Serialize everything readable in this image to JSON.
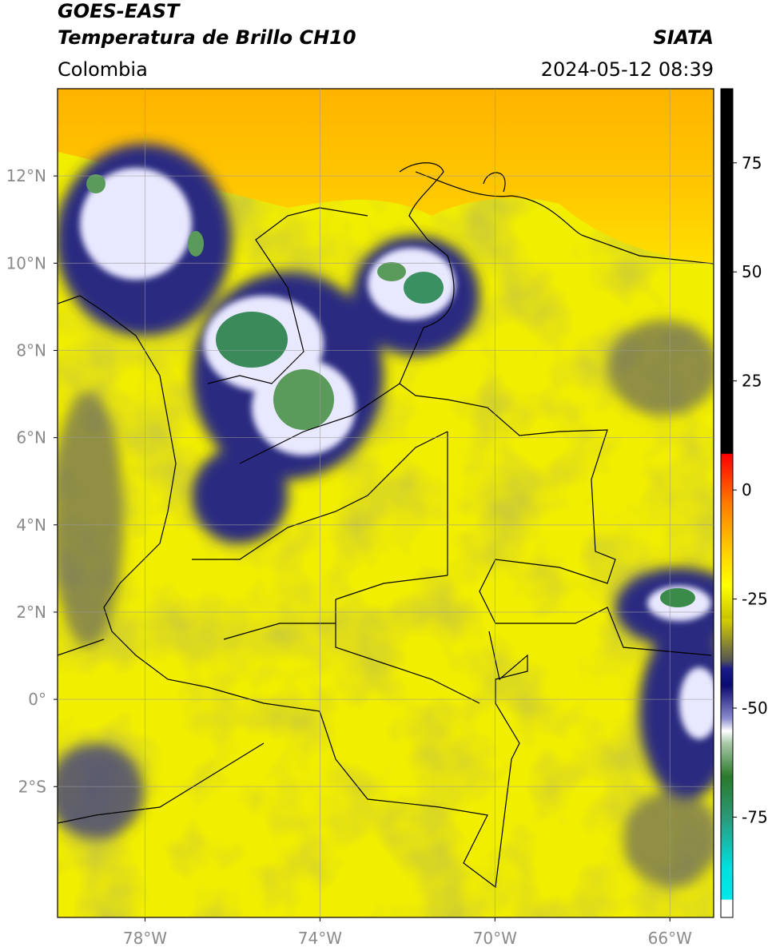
{
  "header": {
    "satellite": "GOES-EAST",
    "product": "Temperatura de Brillo CH10",
    "source": "SIATA",
    "region": "Colombia",
    "datetime": "2024-05-12 08:39"
  },
  "map": {
    "xlim": [
      -80,
      -65
    ],
    "ylim": [
      -5,
      14
    ],
    "grid": true,
    "xticks": [
      {
        "value": -78,
        "label": "78°W"
      },
      {
        "value": -74,
        "label": "74°W"
      },
      {
        "value": -70,
        "label": "70°W"
      },
      {
        "value": -66,
        "label": "66°W"
      }
    ],
    "yticks": [
      {
        "value": 12,
        "label": "12°N"
      },
      {
        "value": 10,
        "label": "10°N"
      },
      {
        "value": 8,
        "label": "8°N"
      },
      {
        "value": 6,
        "label": "6°N"
      },
      {
        "value": 4,
        "label": "4°N"
      },
      {
        "value": 2,
        "label": "2°N"
      },
      {
        "value": 0,
        "label": "0°"
      },
      {
        "value": -2,
        "label": "2°S"
      }
    ]
  },
  "colorbar": {
    "lim": [
      -98,
      92
    ],
    "ticks": [
      75,
      50,
      25,
      0,
      -25,
      -50,
      -75
    ]
  }
}
